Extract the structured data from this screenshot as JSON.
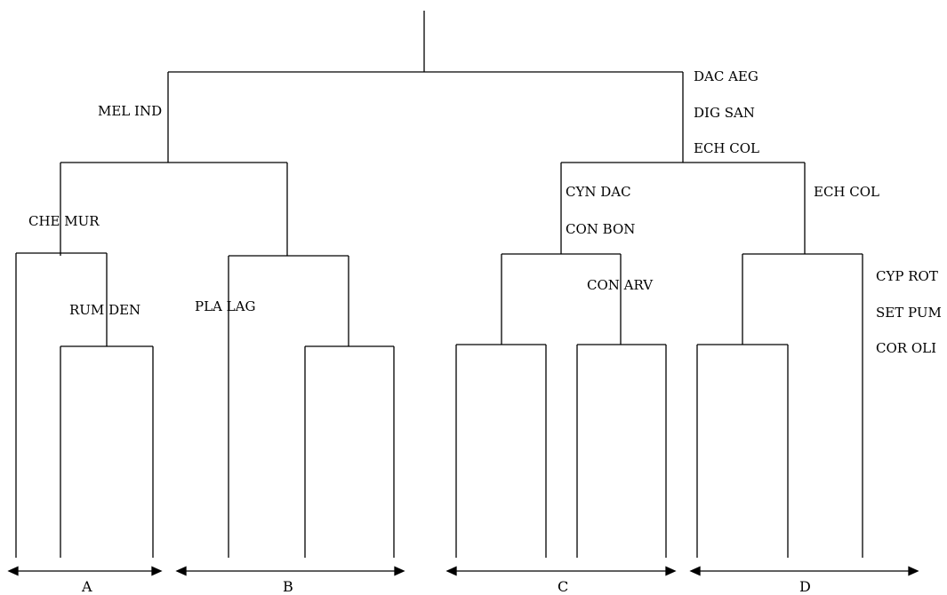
{
  "labels": {
    "dac_aeg": "DAC AEG",
    "dig_san": "DIG SAN",
    "ech_col_top": "ECH COL",
    "mel_ind": "MEL IND",
    "che_mur": "CHE MUR",
    "rum_den": "RUM DEN",
    "pla_lag": "PLA LAG",
    "cyn_dac": "CYN DAC",
    "con_bon": "CON BON",
    "con_arv": "CON ARV",
    "ech_col_right": "ECH COL",
    "cyp_rot": "CYP ROT",
    "set_pum": "SET PUM",
    "cor_oli": "COR OLI"
  },
  "groups": [
    "A",
    "B",
    "C",
    "D"
  ],
  "colors": {
    "line": "#000000",
    "text": "#000000"
  }
}
